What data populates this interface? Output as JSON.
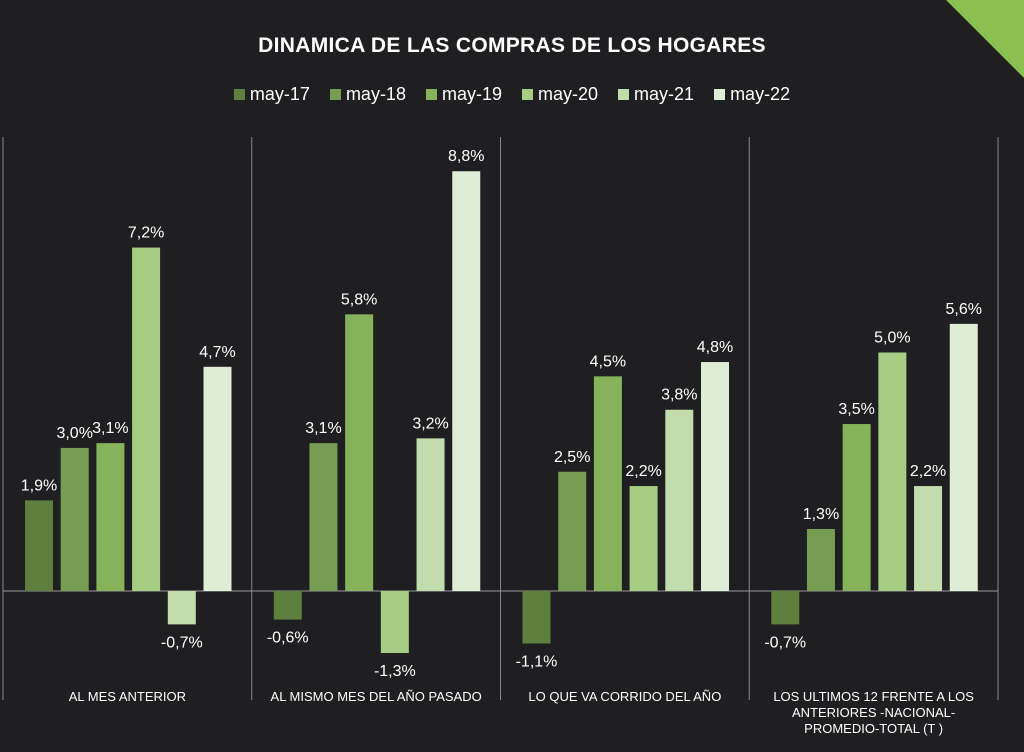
{
  "chart_data": {
    "type": "bar",
    "title": "DINAMICA DE LAS COMPRAS DE LOS HOGARES",
    "categories": [
      [
        "AL MES ANTERIOR"
      ],
      [
        "AL MISMO MES DEL AÑO PASADO"
      ],
      [
        "LO QUE VA CORRIDO DEL AÑO"
      ],
      [
        "LOS ULTIMOS 12 FRENTE A LOS",
        "ANTERIORES    -NACIONAL-",
        "PROMEDIO-TOTAL (T )"
      ]
    ],
    "series": [
      {
        "name": "may-17",
        "color": "#5f7f3e",
        "values": [
          1.9,
          -0.6,
          -1.1,
          -0.7
        ],
        "labels": [
          "1,9%",
          "-0,6%",
          "-1,1%",
          "-0,7%"
        ]
      },
      {
        "name": "may-18",
        "color": "#779c53",
        "values": [
          3.0,
          3.1,
          2.5,
          1.3
        ],
        "labels": [
          "3,0%",
          "3,1%",
          "2,5%",
          "1,3%"
        ]
      },
      {
        "name": "may-19",
        "color": "#87b25c",
        "values": [
          3.1,
          5.8,
          4.5,
          3.5
        ],
        "labels": [
          "3,1%",
          "5,8%",
          "4,5%",
          "3,5%"
        ]
      },
      {
        "name": "may-20",
        "color": "#a7cc84",
        "values": [
          7.2,
          -1.3,
          2.2,
          5.0
        ],
        "labels": [
          "7,2%",
          "-1,3%",
          "2,2%",
          "5,0%"
        ]
      },
      {
        "name": "may-21",
        "color": "#c2dcae",
        "values": [
          -0.7,
          3.2,
          3.8,
          2.2
        ],
        "labels": [
          "-0,7%",
          "3,2%",
          "3,8%",
          "2,2%"
        ]
      },
      {
        "name": "may-22",
        "color": "#dfecd6",
        "values": [
          4.7,
          8.8,
          4.8,
          5.6
        ],
        "labels": [
          "4,7%",
          "8,8%",
          "4,8%",
          "5,6%"
        ]
      }
    ],
    "ylim": [
      -1.5,
      9.5
    ],
    "legend": "top-center",
    "grid": false
  }
}
